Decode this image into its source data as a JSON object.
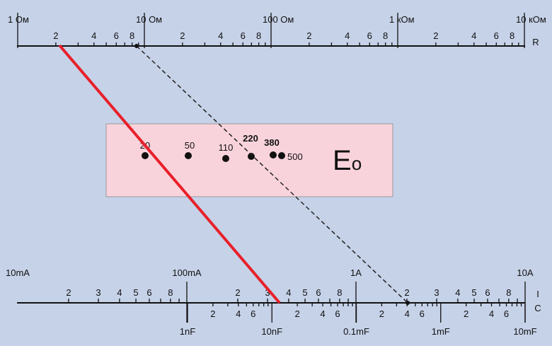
{
  "top_scale": {
    "decade_labels": [
      "1 Ом",
      "10 Ом",
      "100 Ом",
      "1 кОм",
      "10 кОм"
    ],
    "minor_labels": [
      "2",
      "4",
      "6",
      "8"
    ],
    "name": "R"
  },
  "bottom_scale": {
    "current_labels": [
      "10mA",
      "100mA",
      "1A",
      "10A"
    ],
    "current_minor_labels": [
      "2",
      "3",
      "4",
      "5",
      "6",
      "8"
    ],
    "capacitance_labels": [
      "1nF",
      "10nF",
      "0.1mF",
      "1mF",
      "10mF"
    ],
    "capacitance_minor_labels": [
      "2",
      "4",
      "6"
    ],
    "current_name": "I",
    "capacitance_name": "C"
  },
  "box": {
    "points": [
      "20",
      "50",
      "110",
      "220",
      "380",
      "500"
    ],
    "label": "E",
    "label_sub": "o"
  }
}
